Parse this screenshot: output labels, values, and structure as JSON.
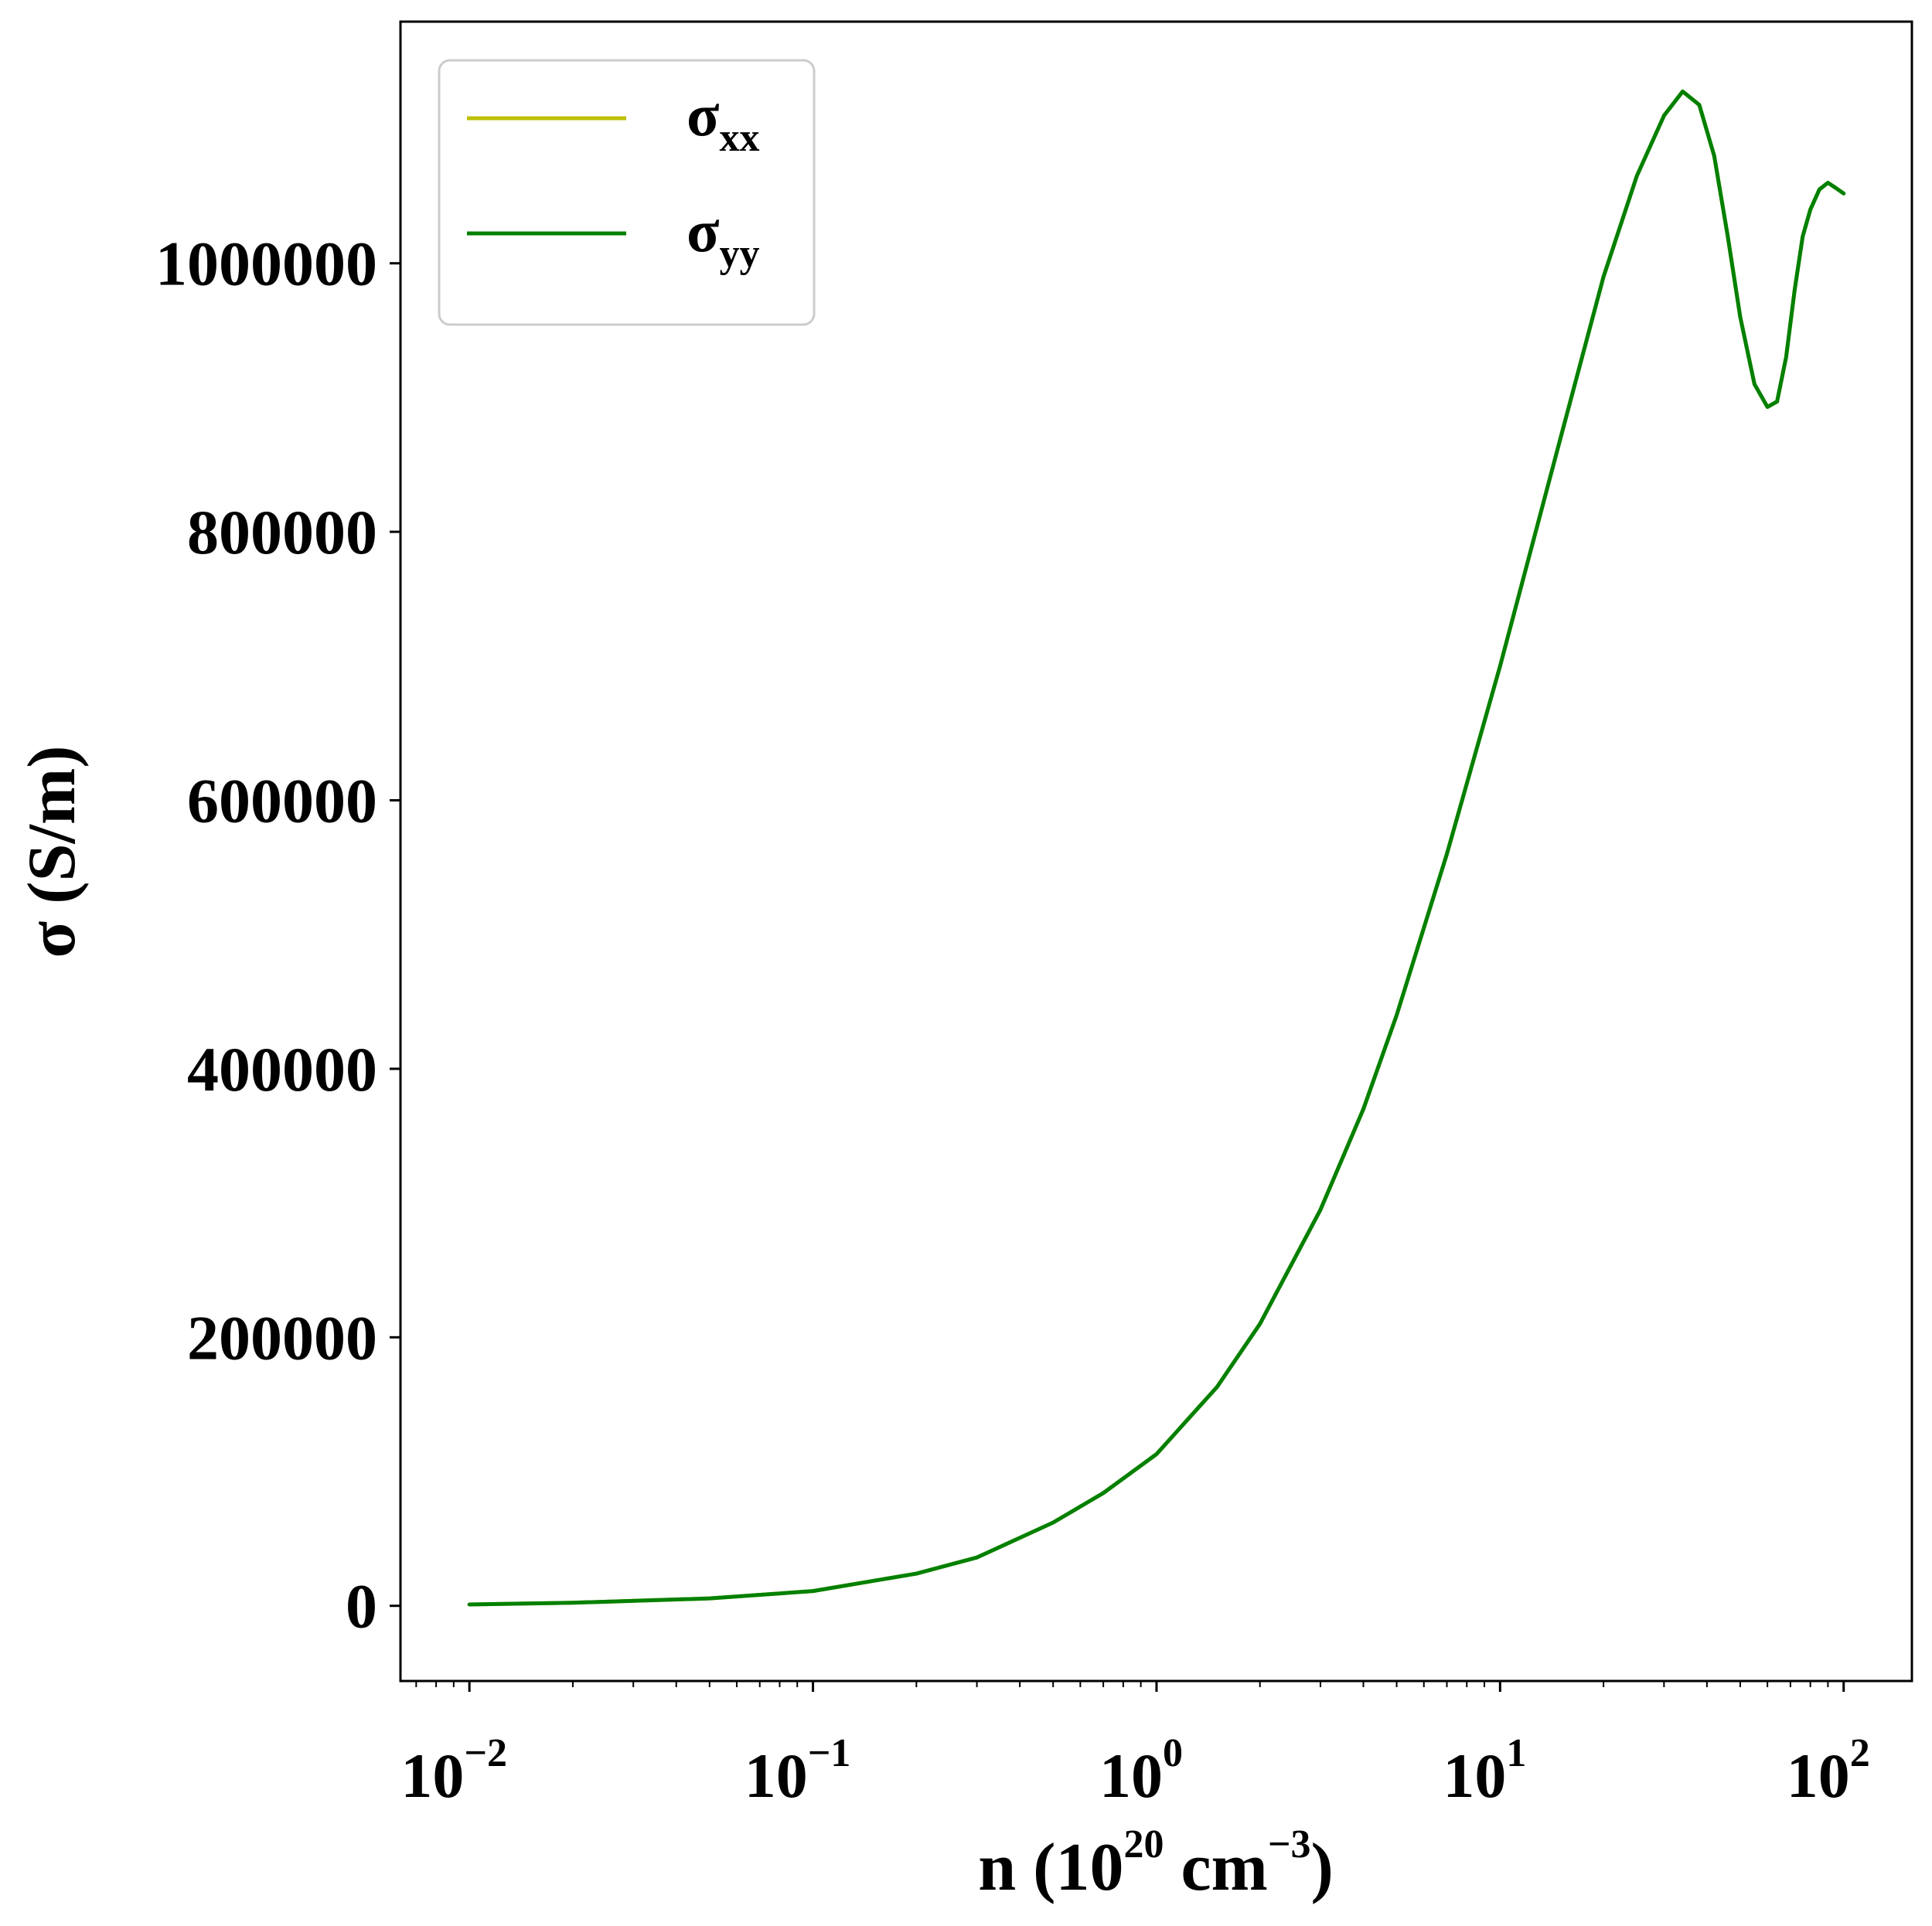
{
  "chart_data": {
    "type": "line",
    "title": "",
    "xlabel": {
      "prefix": "n (10",
      "exp1": "20",
      "middle": " cm",
      "exp2": "−3",
      "suffix": ")"
    },
    "ylabel": "σ (S/m)",
    "xscale": "log",
    "xlim": [
      0.0063,
      158
    ],
    "ylim": [
      -56000,
      1180000
    ],
    "grid": false,
    "legend_position": "top-left",
    "x_ticks": [
      {
        "base": "10",
        "exp": "−2",
        "value": 0.01
      },
      {
        "base": "10",
        "exp": "−1",
        "value": 0.1
      },
      {
        "base": "10",
        "exp": "0",
        "value": 1
      },
      {
        "base": "10",
        "exp": "1",
        "value": 10
      },
      {
        "base": "10",
        "exp": "2",
        "value": 100
      }
    ],
    "y_ticks": [
      {
        "label": "0",
        "value": 0
      },
      {
        "label": "200000",
        "value": 200000
      },
      {
        "label": "400000",
        "value": 400000
      },
      {
        "label": "600000",
        "value": 600000
      },
      {
        "label": "800000",
        "value": 800000
      },
      {
        "label": "1000000",
        "value": 1000000
      }
    ],
    "series": [
      {
        "name": "σxx",
        "symbol": "σ",
        "subscript": "xx",
        "color": "#bfbf00",
        "x": [
          0.01,
          0.02,
          0.05,
          0.1,
          0.2,
          0.3,
          0.5,
          0.7,
          1.0,
          1.5,
          2,
          3,
          4,
          5,
          7,
          10,
          15,
          20,
          25,
          30,
          34,
          38,
          42,
          46,
          50,
          55,
          60,
          64,
          68,
          72,
          76,
          80,
          85,
          90,
          95,
          100
        ],
        "values": [
          1000,
          2300,
          5500,
          11000,
          24000,
          36000,
          62000,
          84000,
          113000,
          163000,
          210000,
          295000,
          370000,
          440000,
          560000,
          700000,
          870000,
          990000,
          1065000,
          1110000,
          1128000,
          1118000,
          1080000,
          1020000,
          960000,
          910000,
          893000,
          897000,
          930000,
          980000,
          1020000,
          1040000,
          1055000,
          1060000,
          1056000,
          1052000
        ]
      },
      {
        "name": "σyy",
        "symbol": "σ",
        "subscript": "yy",
        "color": "#008000",
        "x": [
          0.01,
          0.02,
          0.05,
          0.1,
          0.2,
          0.3,
          0.5,
          0.7,
          1.0,
          1.5,
          2,
          3,
          4,
          5,
          7,
          10,
          15,
          20,
          25,
          30,
          34,
          38,
          42,
          46,
          50,
          55,
          60,
          64,
          68,
          72,
          76,
          80,
          85,
          90,
          95,
          100
        ],
        "values": [
          1000,
          2300,
          5500,
          11000,
          24000,
          36000,
          62000,
          84000,
          113000,
          163000,
          210000,
          295000,
          370000,
          440000,
          560000,
          700000,
          870000,
          990000,
          1065000,
          1110000,
          1128000,
          1118000,
          1080000,
          1020000,
          960000,
          910000,
          893000,
          897000,
          930000,
          980000,
          1020000,
          1040000,
          1055000,
          1060000,
          1056000,
          1052000
        ]
      }
    ]
  }
}
